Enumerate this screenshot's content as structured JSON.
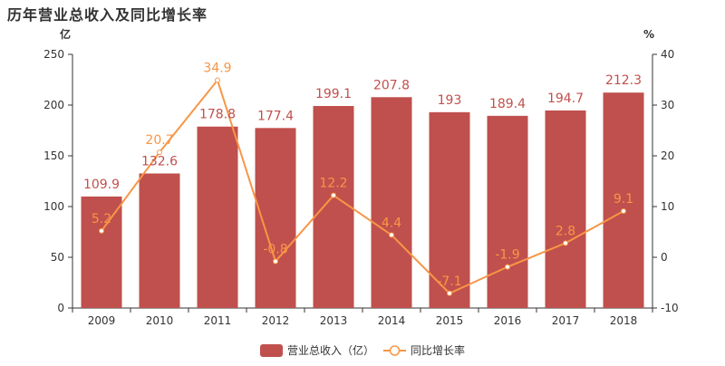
{
  "chart_data": {
    "type": "bar",
    "title": "历年营业总收入及同比增长率",
    "categories": [
      "2009",
      "2010",
      "2011",
      "2012",
      "2013",
      "2014",
      "2015",
      "2016",
      "2017",
      "2018"
    ],
    "series": [
      {
        "name": "营业总收入（亿）",
        "type": "bar",
        "axis": "left",
        "color": "#c0504d",
        "label_color": "#c0504d",
        "values": [
          109.9,
          132.6,
          178.8,
          177.4,
          199.1,
          207.8,
          193,
          189.4,
          194.7,
          212.3
        ]
      },
      {
        "name": "同比增长率",
        "type": "line",
        "axis": "right",
        "color": "#f79646",
        "label_color": "#f79646",
        "values": [
          5.2,
          20.7,
          34.9,
          -0.8,
          12.2,
          4.4,
          -7.1,
          -1.9,
          2.8,
          9.1
        ]
      }
    ],
    "y_left": {
      "unit": "亿",
      "ylim": [
        0,
        250
      ],
      "ticks": [
        0,
        50,
        100,
        150,
        200,
        250
      ]
    },
    "y_right": {
      "unit": "%",
      "ylim": [
        -10,
        40
      ],
      "ticks": [
        -10,
        0,
        10,
        20,
        30,
        40
      ]
    },
    "grid": false,
    "legend_position": "bottom-center"
  }
}
